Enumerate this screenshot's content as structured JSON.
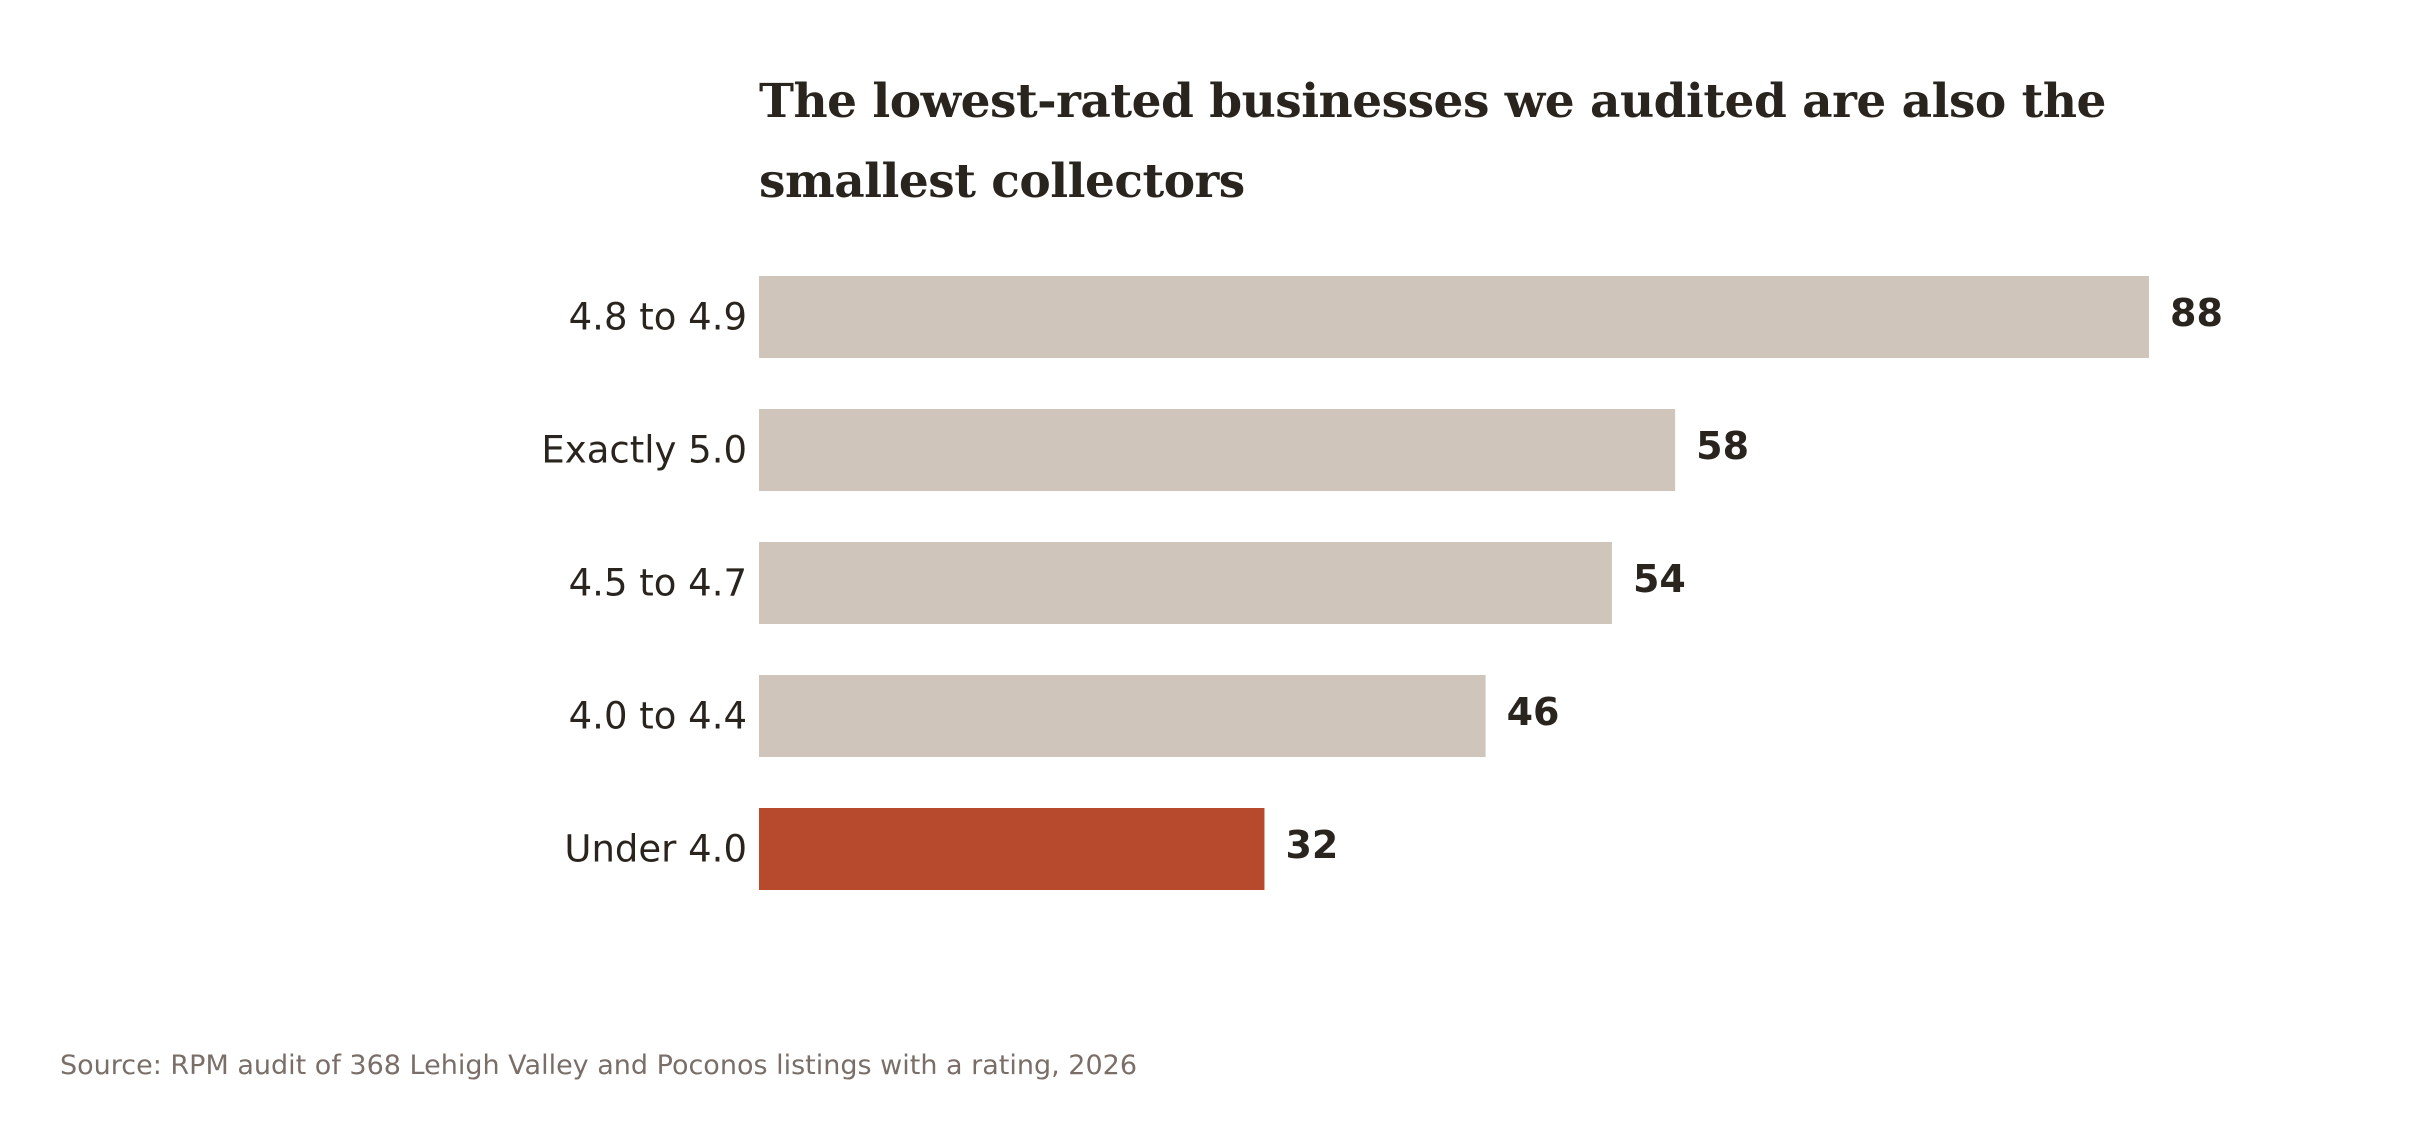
{
  "chart_data": {
    "type": "bar",
    "orientation": "horizontal",
    "title": "The lowest-rated businesses we audited are also the smallest collectors",
    "categories": [
      "4.8 to 4.9",
      "Exactly 5.0",
      "4.5 to 4.7",
      "4.0 to 4.4",
      "Under 4.0"
    ],
    "values": [
      88,
      58,
      54,
      46,
      32
    ],
    "highlight_category": "Under 4.0",
    "xlim": [
      0,
      88
    ],
    "grid": false,
    "legend": "none",
    "colors": {
      "bar": "#d0c5bb",
      "highlight": "#b7492c",
      "text": "#2a241f"
    }
  },
  "source": "Source: RPM audit of 368 Lehigh Valley and Poconos listings with a rating, 2026"
}
